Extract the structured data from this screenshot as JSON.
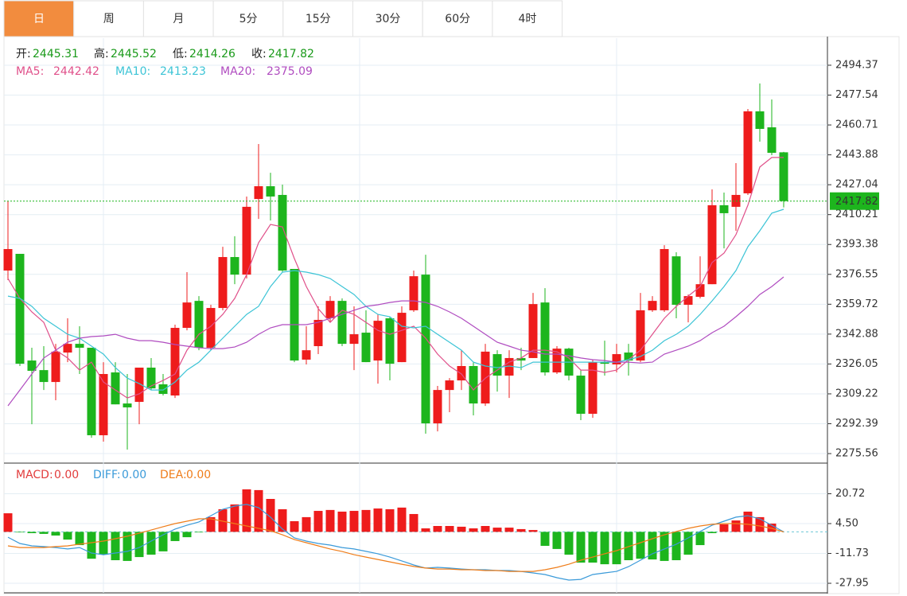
{
  "tabs": [
    "日",
    "周",
    "月",
    "5分",
    "15分",
    "30分",
    "60分",
    "4时"
  ],
  "active_tab": "日",
  "chart_data": [
    {
      "type": "candlestick",
      "up_color": "#ee1c1c",
      "down_color": "#1db51d",
      "grid": true,
      "ohlc_names": [
        "开:",
        "高:",
        "低:",
        "收:"
      ],
      "ylim": [
        2270.2,
        2509.6
      ],
      "yticks": [
        2494.37,
        2477.54,
        2460.71,
        2443.88,
        2427.04,
        2410.21,
        2393.38,
        2376.55,
        2359.72,
        2342.88,
        2326.05,
        2309.22,
        2292.39,
        2275.56
      ],
      "open": [
        2378.7,
        2388.1,
        2328.0,
        2322.6,
        2315.9,
        2332.5,
        2337.4,
        2335.2,
        2285.9,
        2321.3,
        2303.8,
        2304.7,
        2324.0,
        2314.6,
        2308.3,
        2346.4,
        2361.6,
        2335.2,
        2357.6,
        2386.3,
        2376.4,
        2419.0,
        2426.2,
        2421.3,
        2379.6,
        2328.5,
        2336.1,
        2351.8,
        2361.6,
        2337.4,
        2343.7,
        2328.0,
        2351.8,
        2327.1,
        2356.3,
        2376.4,
        2292.6,
        2311.4,
        2316.8,
        2324.9,
        2303.8,
        2331.6,
        2319.5,
        2329.4,
        2329.4,
        2360.7,
        2321.3,
        2334.7,
        2319.5,
        2298.0,
        2327.1,
        2325.8,
        2332.5,
        2328.0,
        2356.3,
        2356.3,
        2386.7,
        2359.4,
        2363.9,
        2371.0,
        2415.5,
        2414.6,
        2422.2,
        2468.4,
        2459.4,
        2445.31
      ],
      "high": [
        2417.7,
        2388.1,
        2335.2,
        2336.1,
        2337.4,
        2351.8,
        2347.3,
        2335.2,
        2327.1,
        2327.1,
        2320.4,
        2324.0,
        2329.4,
        2320.4,
        2348.2,
        2377.8,
        2364.3,
        2359.4,
        2392.1,
        2398.0,
        2420.4,
        2450.0,
        2433.8,
        2427.1,
        2379.6,
        2347.3,
        2358.5,
        2364.3,
        2363.0,
        2358.5,
        2356.3,
        2354.0,
        2352.7,
        2358.5,
        2378.7,
        2387.6,
        2313.7,
        2318.1,
        2333.8,
        2327.1,
        2337.4,
        2333.8,
        2333.8,
        2335.2,
        2366.1,
        2368.8,
        2336.1,
        2335.2,
        2322.6,
        2328.5,
        2339.2,
        2337.4,
        2337.4,
        2366.1,
        2364.3,
        2393.0,
        2389.0,
        2365.2,
        2386.7,
        2424.4,
        2422.6,
        2439.2,
        2469.7,
        2484.1,
        2475.1,
        2445.52
      ],
      "low": [
        2373.3,
        2324.9,
        2292.1,
        2311.4,
        2305.6,
        2327.1,
        2320.4,
        2284.5,
        2282.3,
        2303.3,
        2277.8,
        2292.1,
        2311.4,
        2308.3,
        2306.9,
        2345.0,
        2333.8,
        2333.8,
        2356.3,
        2371.0,
        2374.2,
        2407.8,
        2406.9,
        2377.8,
        2327.1,
        2325.8,
        2331.6,
        2349.5,
        2336.1,
        2322.6,
        2327.1,
        2315.0,
        2316.8,
        2327.1,
        2355.4,
        2286.8,
        2288.1,
        2298.9,
        2311.4,
        2297.1,
        2302.4,
        2310.5,
        2306.9,
        2322.6,
        2329.4,
        2319.5,
        2320.4,
        2316.8,
        2294.4,
        2295.7,
        2319.5,
        2321.3,
        2319.5,
        2327.1,
        2355.4,
        2355.4,
        2351.8,
        2349.5,
        2363.0,
        2371.0,
        2391.2,
        2401.1,
        2421.3,
        2451.3,
        2443.7,
        2414.26
      ],
      "close": [
        2390.8,
        2326.2,
        2322.2,
        2315.9,
        2333.0,
        2337.4,
        2335.2,
        2285.9,
        2320.4,
        2303.3,
        2301.6,
        2324.0,
        2312.3,
        2309.2,
        2346.4,
        2360.7,
        2335.2,
        2357.6,
        2386.3,
        2376.4,
        2414.6,
        2426.2,
        2420.4,
        2378.7,
        2328.0,
        2333.8,
        2350.9,
        2361.6,
        2337.4,
        2342.8,
        2327.1,
        2350.4,
        2326.2,
        2354.9,
        2375.5,
        2292.6,
        2311.4,
        2316.8,
        2324.9,
        2303.8,
        2333.0,
        2319.5,
        2329.4,
        2328.0,
        2359.8,
        2321.3,
        2334.7,
        2319.5,
        2298.0,
        2327.1,
        2326.2,
        2331.6,
        2328.0,
        2356.3,
        2361.6,
        2390.8,
        2359.4,
        2364.3,
        2371.0,
        2415.5,
        2411.0,
        2421.3,
        2468.4,
        2458.5,
        2445.0,
        2417.82
      ],
      "series": [
        {
          "name": "MA5: ",
          "color": "#e0508a",
          "values": [
            2374.2,
            2363.0,
            2355.4,
            2349.5,
            2333.8,
            2329.4,
            2322.6,
            2327.1,
            2315.9,
            2311.4,
            2306.9,
            2309.2,
            2313.7,
            2316.8,
            2320.4,
            2333.8,
            2342.8,
            2347.3,
            2354.0,
            2363.0,
            2376.4,
            2394.4,
            2404.7,
            2403.3,
            2385.4,
            2369.7,
            2357.2,
            2349.5,
            2356.3,
            2354.0,
            2349.5,
            2345.0,
            2342.8,
            2345.0,
            2347.3,
            2340.6,
            2331.6,
            2324.9,
            2320.4,
            2311.4,
            2318.1,
            2322.6,
            2327.1,
            2329.4,
            2333.8,
            2333.8,
            2332.9,
            2329.4,
            2322.6,
            2322.6,
            2321.3,
            2322.6,
            2328.5,
            2333.8,
            2342.8,
            2351.8,
            2358.5,
            2364.3,
            2369.7,
            2383.2,
            2388.5,
            2398.9,
            2415.5,
            2437.0,
            2442.4,
            2442.42
          ]
        },
        {
          "name": "MA10: ",
          "color": "#3cc4d6",
          "values": [
            2364.3,
            2363.0,
            2358.5,
            2351.8,
            2347.3,
            2342.8,
            2340.6,
            2336.1,
            2331.6,
            2324.0,
            2318.1,
            2315.0,
            2311.4,
            2311.4,
            2315.9,
            2322.6,
            2327.1,
            2333.8,
            2340.6,
            2347.3,
            2354.0,
            2358.5,
            2369.7,
            2377.8,
            2378.7,
            2377.8,
            2376.4,
            2374.2,
            2369.7,
            2365.2,
            2358.5,
            2354.0,
            2352.7,
            2347.3,
            2346.4,
            2347.3,
            2342.8,
            2338.3,
            2333.8,
            2327.1,
            2324.9,
            2324.0,
            2324.9,
            2324.0,
            2327.1,
            2327.1,
            2327.1,
            2327.1,
            2327.1,
            2327.1,
            2327.1,
            2327.1,
            2328.5,
            2330.3,
            2333.8,
            2339.2,
            2342.8,
            2347.3,
            2354.0,
            2361.6,
            2369.7,
            2378.7,
            2392.1,
            2401.1,
            2411.0,
            2413.23
          ]
        },
        {
          "name": "MA20: ",
          "color": "#b04cc0",
          "values": [
            2302.5,
            2311.4,
            2320.4,
            2329.4,
            2333.8,
            2338.3,
            2340.6,
            2341.5,
            2341.9,
            2342.8,
            2340.6,
            2339.2,
            2339.2,
            2338.3,
            2337.0,
            2336.1,
            2335.2,
            2334.7,
            2334.7,
            2335.6,
            2338.3,
            2342.8,
            2346.4,
            2348.2,
            2348.2,
            2348.2,
            2349.5,
            2351.8,
            2354.0,
            2356.3,
            2358.5,
            2359.4,
            2360.7,
            2361.6,
            2361.6,
            2360.7,
            2358.5,
            2355.4,
            2351.8,
            2347.3,
            2342.8,
            2338.3,
            2336.1,
            2333.8,
            2332.9,
            2331.6,
            2331.6,
            2330.7,
            2329.4,
            2328.5,
            2328.0,
            2327.1,
            2327.1,
            2326.6,
            2327.1,
            2331.6,
            2333.8,
            2336.1,
            2339.2,
            2343.7,
            2347.3,
            2352.7,
            2358.5,
            2365.2,
            2369.7,
            2375.09
          ]
        }
      ]
    },
    {
      "type": "macd",
      "ylim": [
        -33.13,
        36.07
      ],
      "yticks": [
        20.72,
        {
          "value": 4.5,
          "label": "4.50"
        },
        -11.73,
        -27.95
      ],
      "series": [
        {
          "name": "MACD:",
          "color": "#e23c3c",
          "up_color": "#ee1c1c",
          "down_color": "#1db51d",
          "values": [
            10.1,
            -0.3,
            -0.7,
            -1.1,
            -2.0,
            -4.2,
            -7.2,
            -14.6,
            -12.4,
            -15.4,
            -15.8,
            -13.7,
            -12.4,
            -10.6,
            -5.0,
            -2.9,
            -0.3,
            8.0,
            12.3,
            14.9,
            23.1,
            22.7,
            17.9,
            12.3,
            5.8,
            8.0,
            11.4,
            11.9,
            11.0,
            11.4,
            11.9,
            12.7,
            12.3,
            13.2,
            9.7,
            1.9,
            3.2,
            3.2,
            2.8,
            1.9,
            3.2,
            2.3,
            2.3,
            1.5,
            1.0,
            -7.6,
            -9.3,
            -12.4,
            -16.7,
            -16.7,
            -17.6,
            -17.6,
            -15.4,
            -14.6,
            -15.0,
            -15.8,
            -15.4,
            -12.4,
            -7.2,
            -0.7,
            4.1,
            6.2,
            11.0,
            8.0,
            4.5,
            0
          ],
          "value_labels": [
            null,
            null,
            null,
            null,
            null,
            null,
            null,
            null,
            null,
            null,
            null,
            null,
            null,
            null,
            null,
            null,
            null,
            null,
            null,
            null,
            null,
            null,
            null,
            null,
            null,
            null,
            null,
            null,
            null,
            null,
            null,
            null,
            null,
            null,
            null,
            null,
            null,
            null,
            null,
            null,
            null,
            null,
            null,
            null,
            null,
            null,
            null,
            null,
            null,
            null,
            null,
            null,
            null,
            null,
            null,
            null,
            null,
            null,
            null,
            null,
            null,
            null,
            null,
            null,
            null,
            "0.00"
          ]
        },
        {
          "name": "DIFF:",
          "color": "#3a9ad9",
          "values": [
            -2.9,
            -6.3,
            -7.6,
            -8.0,
            -8.5,
            -9.3,
            -8.5,
            -11.5,
            -12.4,
            -11.5,
            -10.6,
            -8.5,
            -5.0,
            -1.6,
            1.5,
            3.6,
            5.4,
            8.8,
            12.3,
            14.0,
            14.9,
            13.2,
            8.0,
            1.5,
            -3.3,
            -5.0,
            -6.3,
            -7.2,
            -8.5,
            -9.3,
            -10.6,
            -11.9,
            -13.7,
            -15.8,
            -18.0,
            -19.7,
            -19.3,
            -19.7,
            -20.2,
            -20.6,
            -20.6,
            -21.0,
            -21.0,
            -21.5,
            -22.3,
            -23.2,
            -24.9,
            -26.2,
            -25.8,
            -23.2,
            -22.3,
            -21.5,
            -18.9,
            -15.4,
            -11.9,
            -9.3,
            -6.7,
            -3.3,
            0.2,
            3.6,
            5.8,
            8.0,
            8.8,
            7.1,
            3.6,
            0
          ],
          "value_labels": [
            null,
            null,
            null,
            null,
            null,
            null,
            null,
            null,
            null,
            null,
            null,
            null,
            null,
            null,
            null,
            null,
            null,
            null,
            null,
            null,
            null,
            null,
            null,
            null,
            null,
            null,
            null,
            null,
            null,
            null,
            null,
            null,
            null,
            null,
            null,
            null,
            null,
            null,
            null,
            null,
            null,
            null,
            null,
            null,
            null,
            null,
            null,
            null,
            null,
            null,
            null,
            null,
            null,
            null,
            null,
            null,
            null,
            null,
            null,
            null,
            null,
            null,
            null,
            null,
            null,
            "0.00"
          ]
        },
        {
          "name": "DEA:",
          "color": "#ef7d1a",
          "values": [
            -7.6,
            -8.5,
            -8.5,
            -8.5,
            -8.0,
            -7.6,
            -6.7,
            -5.9,
            -5.0,
            -3.7,
            -2.4,
            -0.7,
            1.0,
            2.8,
            4.5,
            5.8,
            7.1,
            7.1,
            5.8,
            4.5,
            3.2,
            1.9,
            0.6,
            -1.6,
            -4.2,
            -5.9,
            -7.6,
            -9.3,
            -10.7,
            -12.4,
            -13.7,
            -15.0,
            -16.3,
            -17.6,
            -18.8,
            -19.7,
            -20.2,
            -20.2,
            -20.6,
            -20.6,
            -21.0,
            -21.0,
            -21.5,
            -21.5,
            -21.5,
            -20.6,
            -19.3,
            -17.6,
            -15.4,
            -13.7,
            -11.9,
            -10.2,
            -8.0,
            -5.9,
            -3.7,
            -1.6,
            0.2,
            1.9,
            3.2,
            4.1,
            4.5,
            4.5,
            4.1,
            3.2,
            1.9,
            0
          ],
          "value_labels": [
            null,
            null,
            null,
            null,
            null,
            null,
            null,
            null,
            null,
            null,
            null,
            null,
            null,
            null,
            null,
            null,
            null,
            null,
            null,
            null,
            null,
            null,
            null,
            null,
            null,
            null,
            null,
            null,
            null,
            null,
            null,
            null,
            null,
            null,
            null,
            null,
            null,
            null,
            null,
            null,
            null,
            null,
            null,
            null,
            null,
            null,
            null,
            null,
            null,
            null,
            null,
            null,
            null,
            null,
            null,
            null,
            null,
            null,
            null,
            null,
            null,
            null,
            null,
            null,
            null,
            "0.00"
          ]
        }
      ]
    }
  ]
}
